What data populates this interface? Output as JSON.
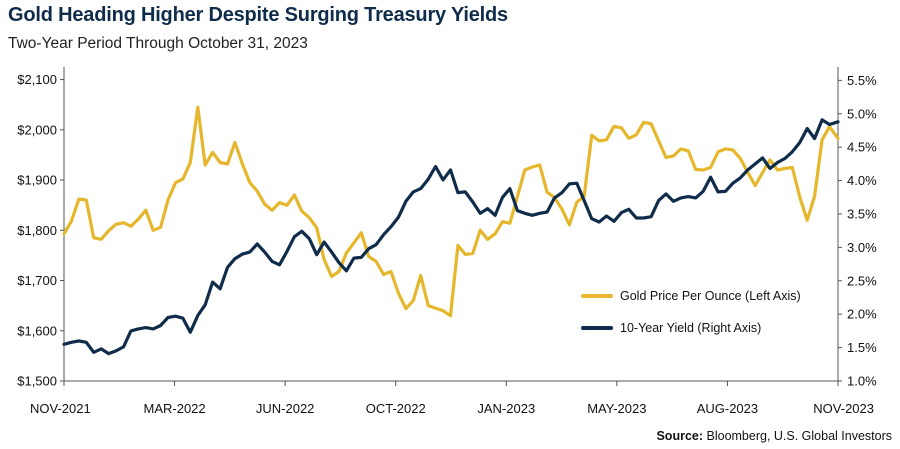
{
  "title": "Gold Heading Higher Despite Surging Treasury Yields",
  "subtitle": "Two-Year Period Through October 31, 2023",
  "source": {
    "label": "Source:",
    "text": "Bloomberg, U.S. Global Investors"
  },
  "colors": {
    "gold": "#e6b72c",
    "yield": "#0f2c4a",
    "axis": "#555555"
  },
  "chart_data": {
    "type": "line",
    "x_ticks": [
      "NOV-2021",
      "MAR-2022",
      "JUN-2022",
      "OCT-2022",
      "JAN-2023",
      "MAY-2023",
      "AUG-2023",
      "NOV-2023"
    ],
    "x_range": [
      "2021-11-01",
      "2023-10-31"
    ],
    "y_left": {
      "ticks": [
        "$1,500",
        "$1,600",
        "$1,700",
        "$1,800",
        "$1,900",
        "$2,000",
        "$2,100"
      ],
      "range": [
        1500,
        2125
      ]
    },
    "y_right": {
      "ticks": [
        "1.0%",
        "1.5%",
        "2.0%",
        "2.5%",
        "3.0%",
        "3.5%",
        "4.0%",
        "4.5%",
        "5.0%",
        "5.5%"
      ],
      "range": [
        1.0,
        5.7
      ]
    },
    "legend_placement": "right-middle",
    "grid": false,
    "series": [
      {
        "name": "Gold Price Per Ounce (Left Axis)",
        "axis": "left",
        "points": [
          [
            "2021-11-01",
            1793
          ],
          [
            "2021-11-08",
            1818
          ],
          [
            "2021-11-15",
            1862
          ],
          [
            "2021-11-22",
            1860
          ],
          [
            "2021-11-29",
            1785
          ],
          [
            "2021-12-06",
            1782
          ],
          [
            "2021-12-13",
            1799
          ],
          [
            "2021-12-20",
            1812
          ],
          [
            "2021-12-27",
            1815
          ],
          [
            "2022-01-03",
            1808
          ],
          [
            "2022-01-10",
            1822
          ],
          [
            "2022-01-17",
            1840
          ],
          [
            "2022-01-24",
            1800
          ],
          [
            "2022-01-31",
            1806
          ],
          [
            "2022-02-07",
            1860
          ],
          [
            "2022-02-14",
            1895
          ],
          [
            "2022-02-21",
            1902
          ],
          [
            "2022-02-28",
            1935
          ],
          [
            "2022-03-07",
            2045
          ],
          [
            "2022-03-14",
            1930
          ],
          [
            "2022-03-21",
            1955
          ],
          [
            "2022-03-28",
            1935
          ],
          [
            "2022-04-04",
            1932
          ],
          [
            "2022-04-11",
            1975
          ],
          [
            "2022-04-18",
            1932
          ],
          [
            "2022-04-25",
            1895
          ],
          [
            "2022-05-02",
            1878
          ],
          [
            "2022-05-09",
            1852
          ],
          [
            "2022-05-16",
            1840
          ],
          [
            "2022-05-23",
            1855
          ],
          [
            "2022-05-30",
            1850
          ],
          [
            "2022-06-06",
            1870
          ],
          [
            "2022-06-13",
            1838
          ],
          [
            "2022-06-20",
            1825
          ],
          [
            "2022-06-27",
            1805
          ],
          [
            "2022-07-04",
            1742
          ],
          [
            "2022-07-11",
            1708
          ],
          [
            "2022-07-18",
            1718
          ],
          [
            "2022-07-25",
            1755
          ],
          [
            "2022-08-01",
            1775
          ],
          [
            "2022-08-08",
            1795
          ],
          [
            "2022-08-15",
            1748
          ],
          [
            "2022-08-22",
            1738
          ],
          [
            "2022-08-29",
            1712
          ],
          [
            "2022-09-05",
            1718
          ],
          [
            "2022-09-12",
            1675
          ],
          [
            "2022-09-19",
            1644
          ],
          [
            "2022-09-26",
            1660
          ],
          [
            "2022-10-03",
            1710
          ],
          [
            "2022-10-10",
            1650
          ],
          [
            "2022-10-17",
            1645
          ],
          [
            "2022-10-24",
            1640
          ],
          [
            "2022-10-31",
            1630
          ],
          [
            "2022-11-07",
            1770
          ],
          [
            "2022-11-14",
            1752
          ],
          [
            "2022-11-21",
            1754
          ],
          [
            "2022-11-28",
            1800
          ],
          [
            "2022-12-05",
            1782
          ],
          [
            "2022-12-12",
            1793
          ],
          [
            "2022-12-19",
            1817
          ],
          [
            "2022-12-26",
            1814
          ],
          [
            "2023-01-02",
            1867
          ],
          [
            "2023-01-09",
            1920
          ],
          [
            "2023-01-16",
            1926
          ],
          [
            "2023-01-23",
            1930
          ],
          [
            "2023-01-30",
            1876
          ],
          [
            "2023-02-06",
            1865
          ],
          [
            "2023-02-13",
            1842
          ],
          [
            "2023-02-20",
            1811
          ],
          [
            "2023-02-27",
            1856
          ],
          [
            "2023-03-06",
            1868
          ],
          [
            "2023-03-13",
            1989
          ],
          [
            "2023-03-20",
            1978
          ],
          [
            "2023-03-27",
            1980
          ],
          [
            "2023-04-03",
            2007
          ],
          [
            "2023-04-10",
            2004
          ],
          [
            "2023-04-17",
            1983
          ],
          [
            "2023-04-24",
            1990
          ],
          [
            "2023-05-01",
            2015
          ],
          [
            "2023-05-08",
            2012
          ],
          [
            "2023-05-15",
            1978
          ],
          [
            "2023-05-22",
            1945
          ],
          [
            "2023-05-29",
            1948
          ],
          [
            "2023-06-05",
            1962
          ],
          [
            "2023-06-12",
            1958
          ],
          [
            "2023-06-19",
            1921
          ],
          [
            "2023-06-26",
            1920
          ],
          [
            "2023-07-03",
            1925
          ],
          [
            "2023-07-10",
            1956
          ],
          [
            "2023-07-17",
            1962
          ],
          [
            "2023-07-24",
            1960
          ],
          [
            "2023-07-31",
            1943
          ],
          [
            "2023-08-07",
            1915
          ],
          [
            "2023-08-14",
            1889
          ],
          [
            "2023-08-21",
            1915
          ],
          [
            "2023-08-28",
            1940
          ],
          [
            "2023-09-04",
            1920
          ],
          [
            "2023-09-11",
            1923
          ],
          [
            "2023-09-18",
            1925
          ],
          [
            "2023-09-25",
            1866
          ],
          [
            "2023-10-02",
            1820
          ],
          [
            "2023-10-09",
            1868
          ],
          [
            "2023-10-16",
            1980
          ],
          [
            "2023-10-23",
            2006
          ],
          [
            "2023-10-31",
            1983
          ]
        ]
      },
      {
        "name": "10-Year Yield (Right Axis)",
        "axis": "right",
        "points": [
          [
            "2021-11-01",
            1.55
          ],
          [
            "2021-11-08",
            1.58
          ],
          [
            "2021-11-15",
            1.6
          ],
          [
            "2021-11-22",
            1.58
          ],
          [
            "2021-11-29",
            1.43
          ],
          [
            "2021-12-06",
            1.48
          ],
          [
            "2021-12-13",
            1.41
          ],
          [
            "2021-12-20",
            1.45
          ],
          [
            "2021-12-27",
            1.51
          ],
          [
            "2022-01-03",
            1.75
          ],
          [
            "2022-01-10",
            1.78
          ],
          [
            "2022-01-17",
            1.8
          ],
          [
            "2022-01-24",
            1.78
          ],
          [
            "2022-01-31",
            1.83
          ],
          [
            "2022-02-07",
            1.95
          ],
          [
            "2022-02-14",
            1.97
          ],
          [
            "2022-02-21",
            1.94
          ],
          [
            "2022-02-28",
            1.73
          ],
          [
            "2022-03-07",
            1.98
          ],
          [
            "2022-03-14",
            2.14
          ],
          [
            "2022-03-21",
            2.48
          ],
          [
            "2022-03-28",
            2.38
          ],
          [
            "2022-04-04",
            2.7
          ],
          [
            "2022-04-11",
            2.83
          ],
          [
            "2022-04-18",
            2.9
          ],
          [
            "2022-04-25",
            2.93
          ],
          [
            "2022-05-02",
            3.05
          ],
          [
            "2022-05-09",
            2.93
          ],
          [
            "2022-05-16",
            2.79
          ],
          [
            "2022-05-23",
            2.74
          ],
          [
            "2022-05-30",
            2.94
          ],
          [
            "2022-06-06",
            3.16
          ],
          [
            "2022-06-13",
            3.24
          ],
          [
            "2022-06-20",
            3.13
          ],
          [
            "2022-06-27",
            2.89
          ],
          [
            "2022-07-04",
            3.08
          ],
          [
            "2022-07-11",
            2.93
          ],
          [
            "2022-07-18",
            2.77
          ],
          [
            "2022-07-25",
            2.65
          ],
          [
            "2022-08-01",
            2.84
          ],
          [
            "2022-08-08",
            2.85
          ],
          [
            "2022-08-15",
            2.98
          ],
          [
            "2022-08-22",
            3.04
          ],
          [
            "2022-08-29",
            3.19
          ],
          [
            "2022-09-05",
            3.31
          ],
          [
            "2022-09-12",
            3.45
          ],
          [
            "2022-09-19",
            3.69
          ],
          [
            "2022-09-26",
            3.83
          ],
          [
            "2022-10-03",
            3.88
          ],
          [
            "2022-10-10",
            4.02
          ],
          [
            "2022-10-17",
            4.21
          ],
          [
            "2022-10-24",
            4.01
          ],
          [
            "2022-10-31",
            4.16
          ],
          [
            "2022-11-07",
            3.82
          ],
          [
            "2022-11-14",
            3.83
          ],
          [
            "2022-11-21",
            3.68
          ],
          [
            "2022-11-28",
            3.51
          ],
          [
            "2022-12-05",
            3.58
          ],
          [
            "2022-12-12",
            3.48
          ],
          [
            "2022-12-19",
            3.75
          ],
          [
            "2022-12-26",
            3.88
          ],
          [
            "2023-01-02",
            3.55
          ],
          [
            "2023-01-09",
            3.51
          ],
          [
            "2023-01-16",
            3.48
          ],
          [
            "2023-01-23",
            3.51
          ],
          [
            "2023-01-30",
            3.53
          ],
          [
            "2023-02-06",
            3.74
          ],
          [
            "2023-02-13",
            3.82
          ],
          [
            "2023-02-20",
            3.95
          ],
          [
            "2023-02-27",
            3.96
          ],
          [
            "2023-03-06",
            3.7
          ],
          [
            "2023-03-13",
            3.43
          ],
          [
            "2023-03-20",
            3.38
          ],
          [
            "2023-03-27",
            3.47
          ],
          [
            "2023-04-03",
            3.39
          ],
          [
            "2023-04-10",
            3.52
          ],
          [
            "2023-04-17",
            3.57
          ],
          [
            "2023-04-24",
            3.44
          ],
          [
            "2023-05-01",
            3.44
          ],
          [
            "2023-05-08",
            3.46
          ],
          [
            "2023-05-15",
            3.7
          ],
          [
            "2023-05-22",
            3.8
          ],
          [
            "2023-05-29",
            3.69
          ],
          [
            "2023-06-05",
            3.74
          ],
          [
            "2023-06-12",
            3.76
          ],
          [
            "2023-06-19",
            3.74
          ],
          [
            "2023-06-26",
            3.84
          ],
          [
            "2023-07-03",
            4.05
          ],
          [
            "2023-07-10",
            3.83
          ],
          [
            "2023-07-17",
            3.84
          ],
          [
            "2023-07-24",
            3.96
          ],
          [
            "2023-07-31",
            4.04
          ],
          [
            "2023-08-07",
            4.16
          ],
          [
            "2023-08-14",
            4.25
          ],
          [
            "2023-08-21",
            4.34
          ],
          [
            "2023-08-28",
            4.18
          ],
          [
            "2023-09-04",
            4.27
          ],
          [
            "2023-09-11",
            4.33
          ],
          [
            "2023-09-18",
            4.43
          ],
          [
            "2023-09-25",
            4.57
          ],
          [
            "2023-10-02",
            4.78
          ],
          [
            "2023-10-09",
            4.63
          ],
          [
            "2023-10-16",
            4.91
          ],
          [
            "2023-10-23",
            4.84
          ],
          [
            "2023-10-31",
            4.88
          ]
        ]
      }
    ]
  }
}
